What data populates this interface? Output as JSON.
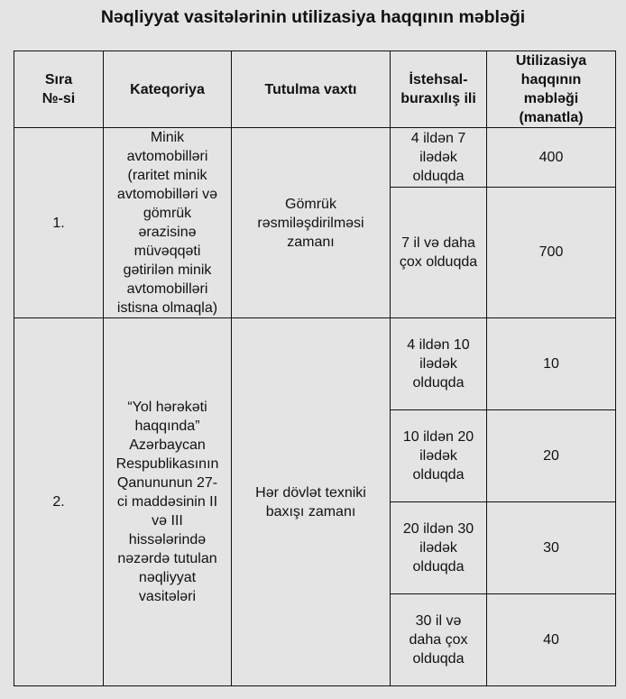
{
  "title": "Nəqliyyat vasitələrinin utilizasiya haqqının məbləği",
  "headers": [
    "Sıra\n№-si",
    "Kateqoriya",
    "Tutulma vaxtı",
    "İstehsal-\nburaxılış ili",
    "Utilizasiya\nhaqqının\nməbləği\n(manatla)"
  ],
  "rows": [
    {
      "number": "1.",
      "category": "Minik\navtomobilləri\n(raritet minik\navtomobilləri və\ngömrük\nərazisinə\nmüvəqqəti\ngətirilən minik\navtomobilləri\nistisna olmaqla)",
      "timing": "Gömrük\nrəsmiləşdirilməsi\nzamanı",
      "tiers": [
        {
          "age": "4 ildən 7\nilədək\nolduqda",
          "amount": "400"
        },
        {
          "age": "7 il və daha\nçox olduqda",
          "amount": "700"
        }
      ]
    },
    {
      "number": "2.",
      "category": "“Yol hərəkəti\nhaqqında”\nAzərbaycan\nRespublikasının\nQanununun 27-\nci maddəsinin II\nvə III\nhissələrində\nnəzərdə tutulan\nnəqliyyat\nvasitələri",
      "timing": "Hər dövlət texniki\nbaxışı zamanı",
      "tiers": [
        {
          "age": "4 ildən 10\nilədək\nolduqda",
          "amount": "10"
        },
        {
          "age": "10 ildən 20\nilədək\nolduqda",
          "amount": "20"
        },
        {
          "age": "20 ildən 30\nilədək\nolduqda",
          "amount": "30"
        },
        {
          "age": "30 il və\ndaha çox\nolduqda",
          "amount": "40"
        }
      ]
    }
  ]
}
